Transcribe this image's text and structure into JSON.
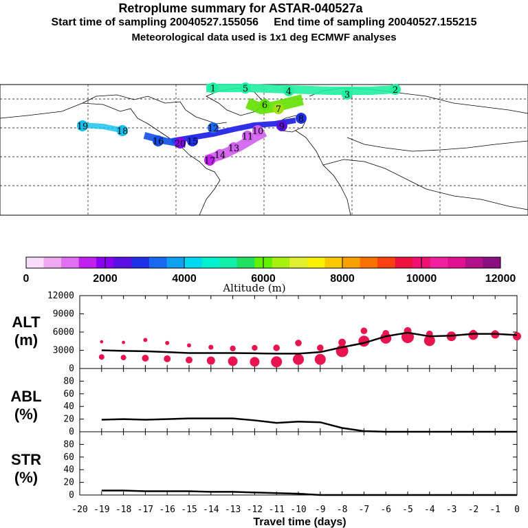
{
  "header": {
    "title": "Retroplume summary for ASTAR-040527a",
    "subtitle": "Start time of sampling 20040527.155056     End time of sampling 20040527.155215",
    "met_line": "Meteorological data used is 1x1 deg ECMWF analyses"
  },
  "colors": {
    "axis": "#000000",
    "marker": "#e8144f",
    "line": "#000000"
  },
  "colorbar": {
    "label": "Altitude (m)",
    "ticks": [
      "0",
      "2000",
      "4000",
      "6000",
      "8000",
      "10000",
      "12000"
    ],
    "swatches": [
      "#f8dcf8",
      "#f0a8f0",
      "#e070f0",
      "#c020f0",
      "#8a00f0",
      "#5a10e0",
      "#2030e8",
      "#1868f0",
      "#10a0f0",
      "#00d8f0",
      "#00f0d0",
      "#10f0a8",
      "#20e060",
      "#60f000",
      "#a8f010",
      "#e0f030",
      "#f8f000",
      "#f8c800",
      "#f8a000",
      "#f87000",
      "#f84010",
      "#f01040",
      "#f01070",
      "#f020a0",
      "#e01090",
      "#b0108a",
      "#8a1080"
    ]
  },
  "map": {
    "plume_labels": [
      "1",
      "2",
      "3",
      "4",
      "5",
      "6",
      "7",
      "8",
      "9",
      "10",
      "11",
      "12",
      "13",
      "14",
      "15",
      "16",
      "17",
      "18",
      "19",
      "20"
    ]
  },
  "chart_data": [
    {
      "type": "scatter",
      "name": "ALT",
      "title": "ALT",
      "ylabel": "ALT (m)",
      "ylabel_top": "ALT",
      "ylabel_unit": "(m)",
      "xlabel": "Travel time (days)",
      "xlim": [
        -20,
        0
      ],
      "ylim": [
        0,
        12000
      ],
      "yticks": [
        "0",
        "3000",
        "6000",
        "9000",
        "12000"
      ],
      "x": [
        -19,
        -18,
        -17,
        -16,
        -15,
        -14,
        -13,
        -12,
        -11,
        -10,
        -9,
        -8,
        -7,
        -6,
        -5,
        -4,
        -3,
        -2,
        -1,
        0
      ],
      "mean_line": [
        3000,
        2900,
        2850,
        2700,
        2550,
        2550,
        2550,
        2500,
        2450,
        2450,
        2700,
        3500,
        4200,
        5300,
        5900,
        5300,
        5400,
        5700,
        5700,
        5500
      ],
      "upper_points": [
        4400,
        4300,
        4700,
        4200,
        3800,
        3500,
        3300,
        3400,
        3400,
        4200,
        3400,
        4300,
        6200,
        5800,
        6200,
        5700,
        5500,
        5900,
        5900,
        5500
      ],
      "lower_points": [
        1900,
        1800,
        1700,
        1600,
        1400,
        1300,
        1200,
        1100,
        1100,
        1500,
        1500,
        2900,
        4500,
        5000,
        5200,
        4600,
        5300,
        5500,
        5600,
        5300
      ],
      "marker_sizes": [
        4,
        4,
        5,
        5,
        5,
        6,
        7,
        7,
        8,
        8,
        8,
        9,
        8,
        8,
        9,
        8,
        7,
        7,
        6,
        6
      ]
    },
    {
      "type": "line",
      "name": "ABL",
      "ylabel": "ABL (%)",
      "ylabel_top": "ABL",
      "ylabel_unit": "(%)",
      "xlim": [
        -20,
        0
      ],
      "ylim": [
        0,
        100
      ],
      "yticks": [
        "0",
        "20",
        "40",
        "60",
        "80"
      ],
      "x": [
        -19,
        -18,
        -17,
        -16,
        -15,
        -14,
        -13,
        -12,
        -11,
        -10,
        -9,
        -8,
        -7,
        -6,
        -5,
        -4,
        -3,
        -2,
        -1,
        0
      ],
      "values": [
        19,
        20,
        19,
        20,
        21,
        21,
        21,
        18,
        14,
        16,
        15,
        6,
        1,
        0,
        0,
        0,
        0,
        0,
        0,
        0
      ]
    },
    {
      "type": "line",
      "name": "STR",
      "ylabel": "STR (%)",
      "ylabel_top": "STR",
      "ylabel_unit": "(%)",
      "xlim": [
        -20,
        0
      ],
      "ylim": [
        0,
        100
      ],
      "yticks": [
        "0",
        "20",
        "40",
        "60",
        "80"
      ],
      "xticks": [
        "-20",
        "-19",
        "-18",
        "-17",
        "-16",
        "-15",
        "-14",
        "-13",
        "-12",
        "-11",
        "-10",
        "-9",
        "-8",
        "-7",
        "-6",
        "-5",
        "-4",
        "-3",
        "-2",
        "-1",
        "0"
      ],
      "x": [
        -19,
        -18,
        -17,
        -16,
        -15,
        -14,
        -13,
        -12,
        -11,
        -10,
        -9,
        -8,
        -7,
        -6,
        -5,
        -4,
        -3,
        -2,
        -1,
        0
      ],
      "values": [
        7,
        7,
        6,
        6,
        6,
        5,
        5,
        4,
        3,
        2,
        0,
        0,
        0,
        0,
        0,
        0,
        0,
        0,
        0,
        0
      ]
    }
  ]
}
